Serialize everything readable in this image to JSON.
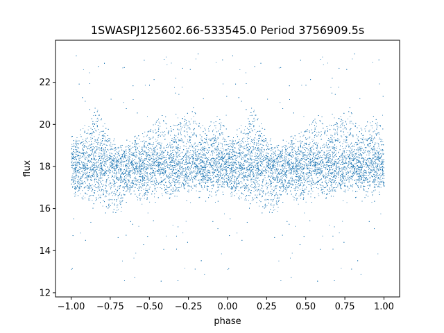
{
  "chart_data": {
    "type": "scatter",
    "title": "1SWASPJ125602.66-533545.0 Period 3756909.5s",
    "xlabel": "phase",
    "ylabel": "flux",
    "xlim": [
      -1.1,
      1.1
    ],
    "ylim": [
      11.8,
      24.0
    ],
    "xticks": [
      -1.0,
      -0.75,
      -0.5,
      -0.25,
      0.0,
      0.25,
      0.5,
      0.75,
      1.0
    ],
    "xtick_labels": [
      "−1.00",
      "−0.75",
      "−0.50",
      "−0.25",
      "0.00",
      "0.25",
      "0.50",
      "0.75",
      "1.00"
    ],
    "yticks": [
      12,
      14,
      16,
      18,
      20,
      22
    ],
    "ytick_labels": [
      "12",
      "14",
      "16",
      "18",
      "20",
      "22"
    ],
    "grid": false,
    "series": [
      {
        "color": "#1f77b4",
        "baseline_flux": 18.0,
        "phase_profile": {
          "phase": [
            0.0,
            0.05,
            0.1,
            0.15,
            0.2,
            0.25,
            0.3,
            0.35,
            0.4,
            0.45,
            0.5,
            0.55,
            0.6,
            0.65,
            0.7,
            0.75,
            0.8,
            0.85,
            0.9,
            0.95,
            1.0
          ],
          "flux_low": [
            16.8,
            16.8,
            16.5,
            16.4,
            16.2,
            16.0,
            16.0,
            16.8,
            16.8,
            16.5,
            16.6,
            16.6,
            16.5,
            16.6,
            16.8,
            17.0,
            16.8,
            16.9,
            16.6,
            16.8,
            16.8
          ],
          "flux_high": [
            19.3,
            19.2,
            19.8,
            20.8,
            20.4,
            19.3,
            18.6,
            19.0,
            19.2,
            19.5,
            19.8,
            20.2,
            20.2,
            19.8,
            20.6,
            20.5,
            20.3,
            19.6,
            20.0,
            20.3,
            19.3
          ]
        }
      }
    ]
  }
}
